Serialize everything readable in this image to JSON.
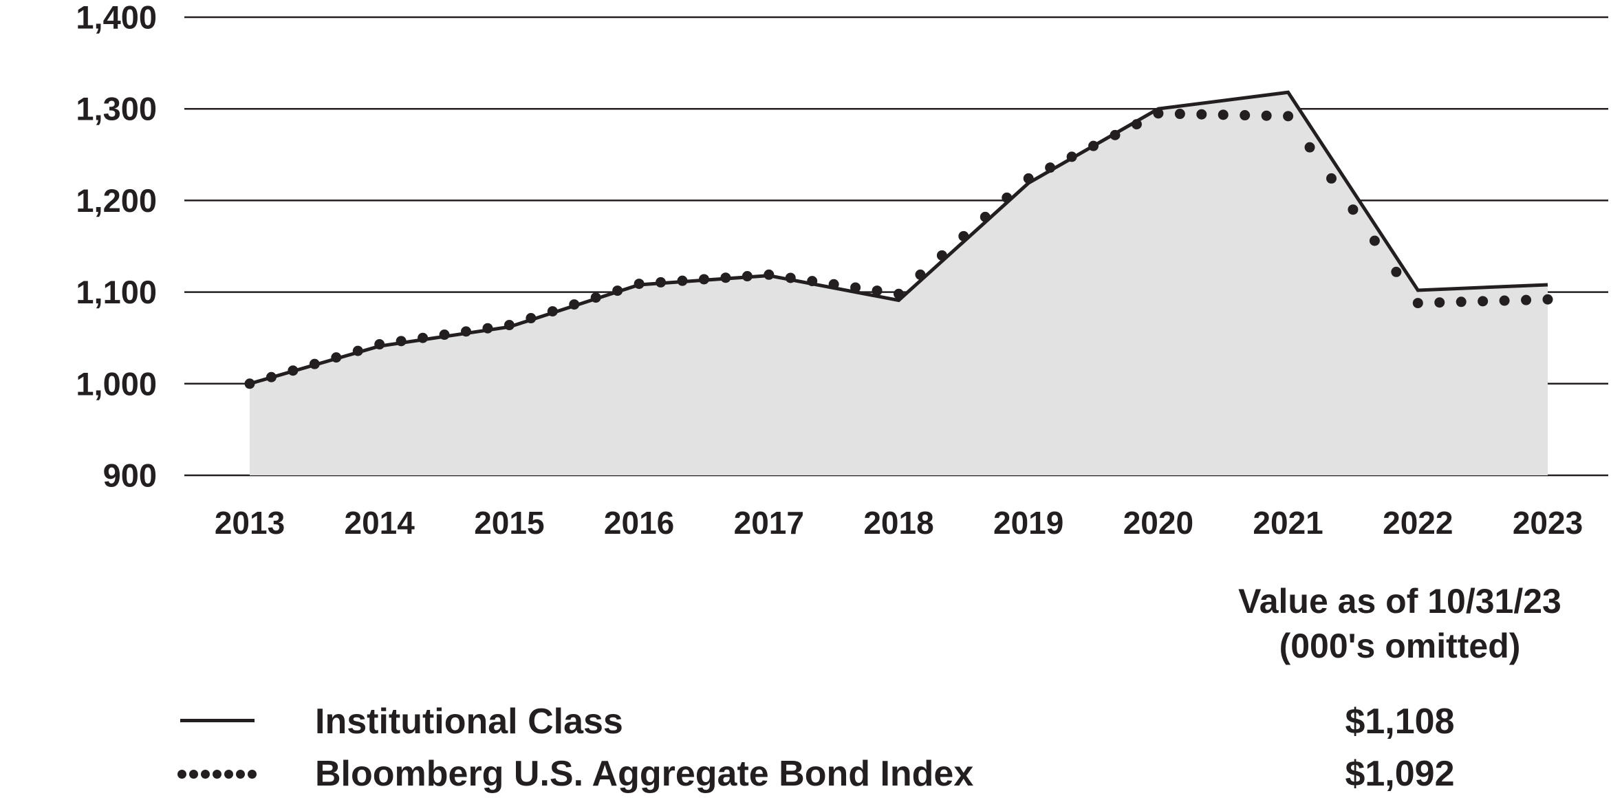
{
  "chart_data": {
    "type": "area",
    "title": "",
    "xlabel": "",
    "ylabel": "",
    "categories": [
      "2013",
      "2014",
      "2015",
      "2016",
      "2017",
      "2018",
      "2019",
      "2020",
      "2021",
      "2022",
      "2023"
    ],
    "series": [
      {
        "name": "Institutional Class",
        "style": "solid-line-with-area-fill",
        "values": [
          1000,
          1041,
          1062,
          1108,
          1118,
          1091,
          1219,
          1300,
          1318,
          1102,
          1108
        ]
      },
      {
        "name": "Bloomberg U.S. Aggregate Bond Index",
        "style": "dotted-line",
        "values": [
          1000,
          1043,
          1064,
          1109,
          1119,
          1098,
          1224,
          1295,
          1292,
          1088,
          1092
        ]
      }
    ],
    "ylim": [
      900,
      1400
    ],
    "yticks": [
      {
        "value": 900,
        "label": "900"
      },
      {
        "value": 1000,
        "label": "1,000"
      },
      {
        "value": 1100,
        "label": "1,100"
      },
      {
        "value": 1200,
        "label": "1,200"
      },
      {
        "value": 1300,
        "label": "1,300"
      },
      {
        "value": 1400,
        "label": "1,400"
      }
    ],
    "grid": "horizontal-only",
    "legend_position": "bottom-left"
  },
  "legend": {
    "value_header_line1": "Value as of 10/31/23",
    "value_header_line2": "(000's omitted)",
    "items": [
      {
        "label": "Institutional Class",
        "value": "$1,108",
        "swatch": "solid-line"
      },
      {
        "label": "Bloomberg U.S. Aggregate Bond Index",
        "value": "$1,092",
        "swatch": "dotted-line"
      }
    ]
  },
  "colors": {
    "ink": "#231f20",
    "area_fill": "#e2e2e3",
    "background": "#ffffff"
  }
}
